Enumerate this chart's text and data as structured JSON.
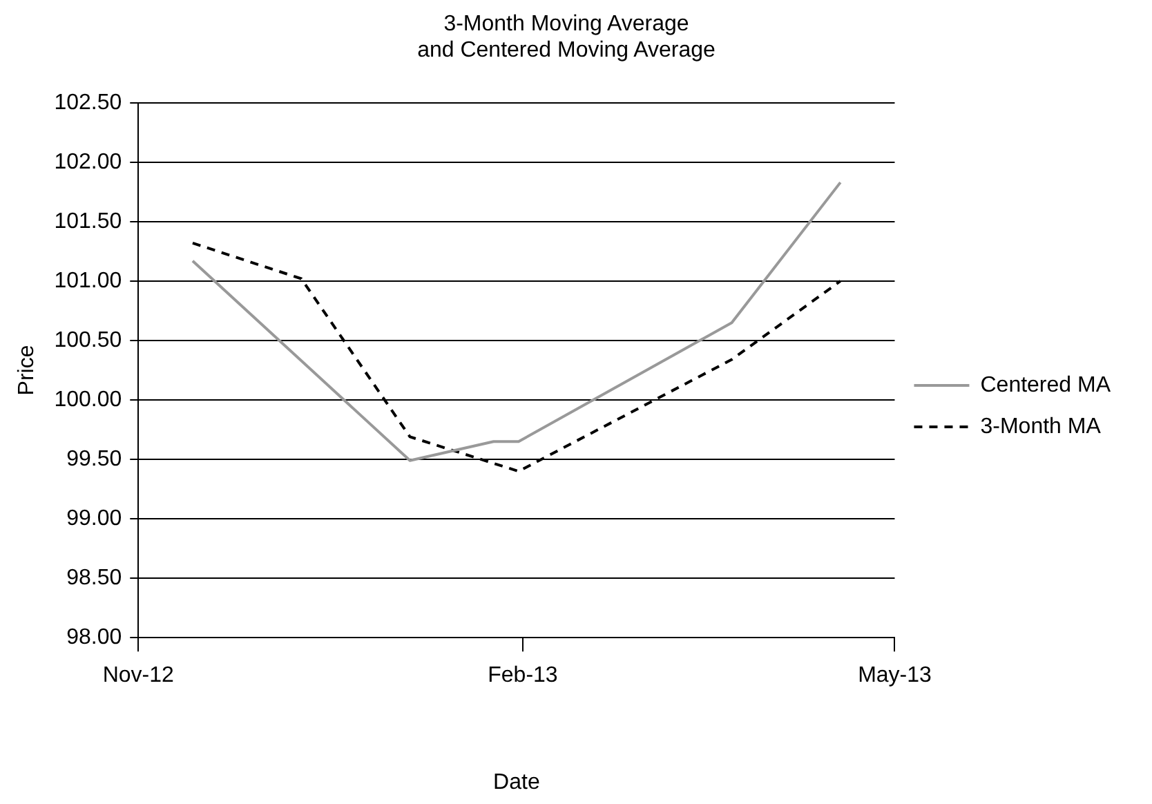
{
  "chart_data": {
    "type": "line",
    "title": [
      "3-Month Moving Average",
      "and Centered Moving Average"
    ],
    "xlabel": "Date",
    "ylabel": "Price",
    "xlim": [
      "2012-11-01",
      "2013-05-01"
    ],
    "xticks": [
      {
        "value": "2012-11-01",
        "label": "Nov-12"
      },
      {
        "value": "2013-02-01",
        "label": "Feb-13"
      },
      {
        "value": "2013-05-01",
        "label": "May-13"
      }
    ],
    "ylim": [
      98,
      102.5
    ],
    "yticks": [
      {
        "value": 98,
        "label": "98.00"
      },
      {
        "value": 98.5,
        "label": "98.50"
      },
      {
        "value": 99,
        "label": "99.00"
      },
      {
        "value": 99.5,
        "label": "99.50"
      },
      {
        "value": 100,
        "label": "100.00"
      },
      {
        "value": 100.5,
        "label": "100.50"
      },
      {
        "value": 101,
        "label": "101.00"
      },
      {
        "value": 101.5,
        "label": "101.50"
      },
      {
        "value": 102,
        "label": "102.00"
      },
      {
        "value": 102.5,
        "label": "102.50"
      }
    ],
    "grid": "y",
    "legend": "right",
    "marker": "none",
    "series": [
      {
        "name": "Centered MA",
        "color": "#999999",
        "line_style": "solid",
        "x": [
          "2012-11-14",
          "2013-01-05",
          "2013-01-25",
          "2013-01-31",
          "2013-03-23",
          "2013-04-18"
        ],
        "values": [
          101.17,
          99.49,
          99.65,
          99.65,
          100.65,
          101.83
        ]
      },
      {
        "name": "3-Month MA",
        "color": "#000000",
        "line_style": "dashed",
        "x": [
          "2012-11-14",
          "2012-12-10",
          "2013-01-05",
          "2013-01-31",
          "2013-03-23",
          "2013-04-18"
        ],
        "values": [
          101.32,
          101.02,
          99.69,
          99.4,
          100.34,
          101.0
        ]
      }
    ]
  }
}
